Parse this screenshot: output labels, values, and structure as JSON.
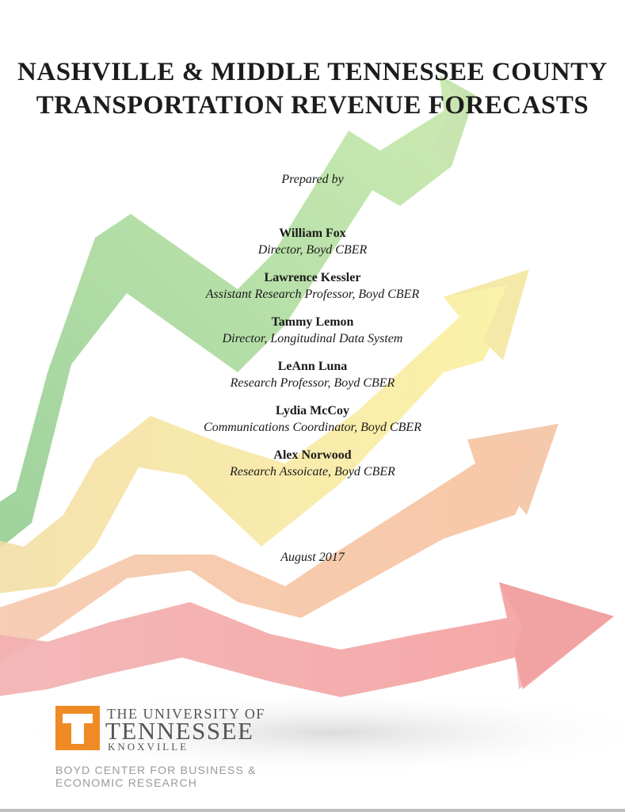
{
  "title": {
    "line1": "NASHVILLE & MIDDLE TENNESSEE COUNTY",
    "line2": "TRANSPORTATION REVENUE FORECASTS"
  },
  "prepared_by": "Prepared by",
  "authors": [
    {
      "name": "William Fox",
      "role": "Director, Boyd CBER"
    },
    {
      "name": "Lawrence Kessler",
      "role": "Assistant Research Professor, Boyd CBER"
    },
    {
      "name": "Tammy Lemon",
      "role": "Director, Longitudinal Data System"
    },
    {
      "name": "LeAnn Luna",
      "role": "Research Professor, Boyd CBER"
    },
    {
      "name": "Lydia McCoy",
      "role": "Communications Coordinator, Boyd CBER"
    },
    {
      "name": "Alex Norwood",
      "role": "Research Assoicate, Boyd CBER"
    }
  ],
  "date": "August 2017",
  "logo": {
    "line1": "THE UNIVERSITY OF",
    "line2": "TENNESSEE",
    "line3": "KNOXVILLE",
    "center_line1": "BOYD CENTER FOR BUSINESS &",
    "center_line2": "ECONOMIC RESEARCH"
  },
  "colors": {
    "green_arrow": "#a9d98c",
    "yellow_arrow": "#f5e77a",
    "orange_arrow": "#f6b48a",
    "red_arrow": "#f3a0a0",
    "ut_orange": "#f08a24"
  }
}
